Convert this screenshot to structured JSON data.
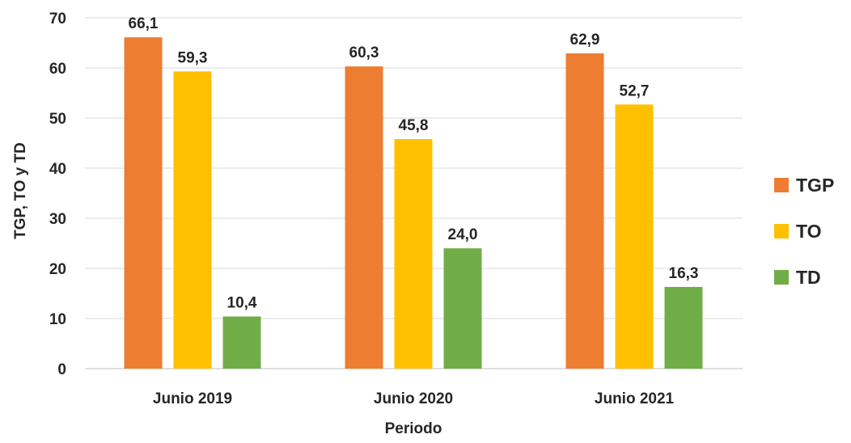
{
  "chart_data": {
    "type": "bar",
    "title": "",
    "xlabel": "Periodo",
    "ylabel": "TGP, TO y TD",
    "ylim": [
      0,
      70
    ],
    "yticks": [
      0,
      10,
      20,
      30,
      40,
      50,
      60,
      70
    ],
    "grid": true,
    "legend_position": "right",
    "categories": [
      "Junio 2019",
      "Junio 2020",
      "Junio 2021"
    ],
    "series": [
      {
        "name": "TGP",
        "color": "#ED7D31",
        "values": [
          66.1,
          60.3,
          62.9
        ],
        "labels": [
          "66,1",
          "60,3",
          "62,9"
        ]
      },
      {
        "name": "TO",
        "color": "#FFC000",
        "values": [
          59.3,
          45.8,
          52.7
        ],
        "labels": [
          "59,3",
          "45,8",
          "52,7"
        ]
      },
      {
        "name": "TD",
        "color": "#70AD47",
        "values": [
          10.4,
          24.0,
          16.3
        ],
        "labels": [
          "10,4",
          "24,0",
          "16,3"
        ]
      }
    ]
  }
}
